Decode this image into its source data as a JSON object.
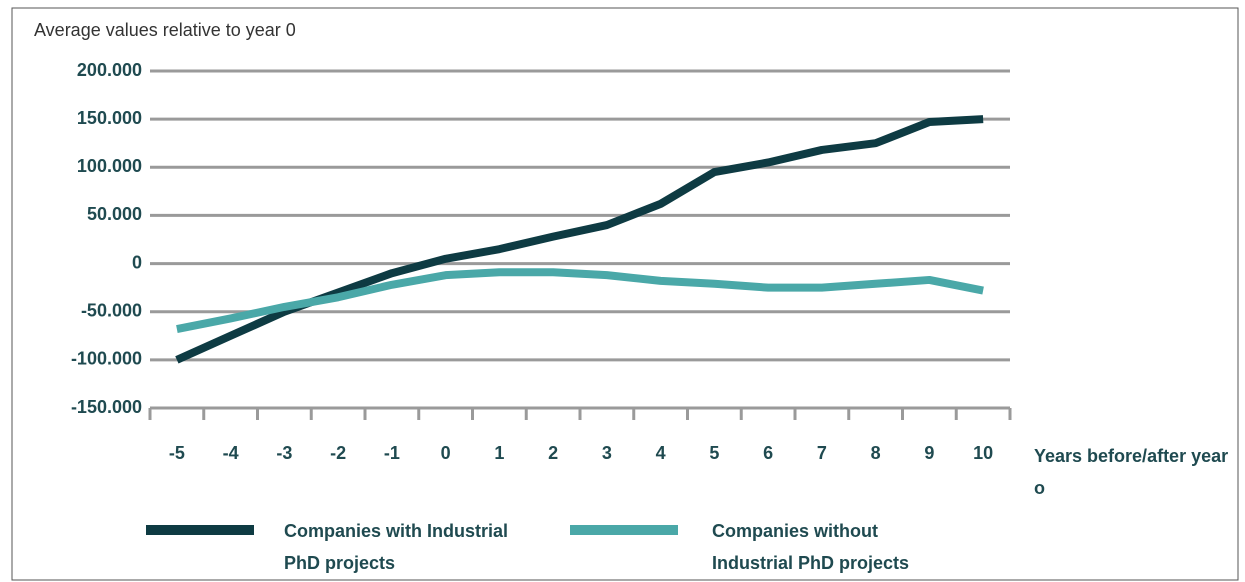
{
  "chart_data": {
    "type": "line",
    "y_axis_label": "Average values relative to year 0",
    "x_axis_label": "Years before/after year o",
    "categories": [
      "-5",
      "-4",
      "-3",
      "-2",
      "-1",
      "0",
      "1",
      "2",
      "3",
      "4",
      "5",
      "6",
      "7",
      "8",
      "9",
      "10"
    ],
    "series": [
      {
        "name": "Companies with Industrial PhD projects",
        "color": "#0e3b43",
        "values": [
          -100000,
          -75000,
          -50000,
          -30000,
          -10000,
          5000,
          15000,
          28000,
          40000,
          62000,
          95000,
          105000,
          118000,
          125000,
          147000,
          150000
        ]
      },
      {
        "name": "Companies without Industrial PhD projects",
        "color": "#4aa8a8",
        "values": [
          -68000,
          -57000,
          -45000,
          -35000,
          -22000,
          -12000,
          -9000,
          -9000,
          -12000,
          -18000,
          -21000,
          -25000,
          -25000,
          -21000,
          -17000,
          -28000
        ]
      }
    ],
    "ylim": [
      -150000,
      200000
    ],
    "yticks": [
      {
        "value": 200000,
        "label": "200.000"
      },
      {
        "value": 150000,
        "label": "150.000"
      },
      {
        "value": 100000,
        "label": "100.000"
      },
      {
        "value": 50000,
        "label": "50.000"
      },
      0,
      {
        "value": -50000,
        "label": "-50.000"
      },
      {
        "value": -100000,
        "label": "-100.000"
      },
      {
        "value": -150000,
        "label": "-150.000"
      }
    ],
    "grid": true
  }
}
